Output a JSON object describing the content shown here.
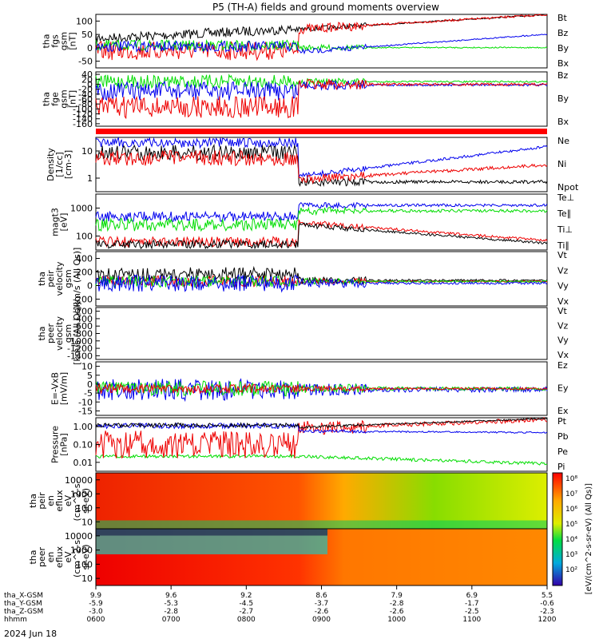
{
  "title": "P5 (TH-A) fields and ground moments overview",
  "date": "2024 Jun 18",
  "colors": {
    "black": "#000000",
    "red": "#ee0000",
    "green": "#00dd00",
    "blue": "#0000ee",
    "bar": "#ff0000"
  },
  "xaxis": {
    "rows": [
      {
        "label": "tha_X-GSM",
        "values": [
          "9.9",
          "9.6",
          "9.2",
          "8.6",
          "7.9",
          "6.9",
          "5.5"
        ]
      },
      {
        "label": "tha_Y-GSM",
        "values": [
          "-5.9",
          "-5.3",
          "-4.5",
          "-3.7",
          "-2.8",
          "-1.7",
          "-0.6"
        ]
      },
      {
        "label": "tha_Z-GSM",
        "values": [
          "-3.0",
          "-2.8",
          "-2.7",
          "-2.6",
          "-2.6",
          "-2.5",
          "-2.3"
        ]
      },
      {
        "label": "hhmm",
        "values": [
          "0600",
          "0700",
          "0800",
          "0900",
          "1000",
          "1100",
          "1200"
        ]
      }
    ]
  },
  "chart_data": [
    {
      "id": "fgs",
      "type": "line",
      "ylabel": [
        "tha",
        "fgs",
        "gsm",
        "[nT]"
      ],
      "ylim": [
        -5,
        100
      ],
      "ticks": [
        "100",
        "50",
        "0",
        "-50"
      ],
      "series": [
        {
          "name": "Bt",
          "color": "black"
        },
        {
          "name": "Bz",
          "color": "red"
        },
        {
          "name": "By",
          "color": "green"
        },
        {
          "name": "Bx",
          "color": "blue"
        }
      ]
    },
    {
      "id": "fge",
      "type": "line",
      "ylabel": [
        "tha",
        "fge",
        "gsm",
        "[nT]"
      ],
      "ylim": [
        -160,
        40
      ],
      "ticks": [
        "40",
        "20",
        "0",
        "-20",
        "-40",
        "-60",
        "-80",
        "-100",
        "-120",
        "-140",
        "-160"
      ],
      "series": [
        {
          "name": "Bz",
          "color": "red"
        },
        {
          "name": "By",
          "color": "green"
        },
        {
          "name": "Bx",
          "color": "blue"
        }
      ]
    },
    {
      "id": "density",
      "type": "line",
      "ylabel": [
        "Density",
        "[1/cc]",
        "[cm-3]"
      ],
      "scale": "log",
      "ticks": [
        "10",
        "1"
      ],
      "series": [
        {
          "name": "Ne",
          "color": "red"
        },
        {
          "name": "Ni",
          "color": "black"
        },
        {
          "name": "Npot",
          "color": "blue"
        }
      ]
    },
    {
      "id": "temp",
      "type": "line",
      "ylabel": [
        "magt3",
        "[eV]"
      ],
      "scale": "log",
      "ticks": [
        "1000",
        "100"
      ],
      "series": [
        {
          "name": "Te⊥",
          "color": "red"
        },
        {
          "name": "Te∥",
          "color": "black"
        },
        {
          "name": "Ti⊥",
          "color": "red"
        },
        {
          "name": "Ti∥",
          "color": "green"
        }
      ]
    },
    {
      "id": "peir_vel",
      "type": "line",
      "ylabel": [
        "tha",
        "peir",
        "velocity",
        "gsm",
        "[km/s (All Qs)]"
      ],
      "ylim": [
        -200,
        400
      ],
      "ticks": [
        "400",
        "200",
        "0",
        "-200"
      ],
      "series": [
        {
          "name": "Vt",
          "color": "black"
        },
        {
          "name": "Vz",
          "color": "red"
        },
        {
          "name": "Vy",
          "color": "green"
        },
        {
          "name": "Vx",
          "color": "blue"
        }
      ]
    },
    {
      "id": "peer_vel",
      "type": "line",
      "ylabel": [
        "tha",
        "peer",
        "velocity",
        "gsm",
        "[km/s (All Qs)]"
      ],
      "ylim": [
        -1400,
        0
      ],
      "ticks": [
        "-200",
        "-400",
        "-600",
        "-800",
        "-1000",
        "-1200",
        "-1400"
      ],
      "series": [
        {
          "name": "Vt",
          "color": "black"
        },
        {
          "name": "Vz",
          "color": "red"
        },
        {
          "name": "Vy",
          "color": "green"
        },
        {
          "name": "Vx",
          "color": "blue"
        }
      ]
    },
    {
      "id": "efield",
      "type": "line",
      "ylabel": [
        "E=-VxB",
        "[mV/m]"
      ],
      "ylim": [
        -15,
        10
      ],
      "ticks": [
        "10",
        "5",
        "0",
        "-5",
        "-10",
        "-15"
      ],
      "series": [
        {
          "name": "Ez",
          "color": "red"
        },
        {
          "name": "Ey",
          "color": "green"
        },
        {
          "name": "Ex",
          "color": "blue"
        }
      ]
    },
    {
      "id": "pressure",
      "type": "line",
      "ylabel": [
        "Pressure",
        "[nPa]"
      ],
      "scale": "log",
      "ticks": [
        "1.00",
        "0.10",
        "0.01"
      ],
      "series": [
        {
          "name": "Pt",
          "color": "black"
        },
        {
          "name": "Pb",
          "color": "red"
        },
        {
          "name": "Pe",
          "color": "green"
        },
        {
          "name": "Pi",
          "color": "blue"
        }
      ]
    },
    {
      "id": "peir_en",
      "type": "heatmap",
      "ylabel": [
        "tha",
        "peir",
        "en",
        "eflux",
        "eV",
        "(cm^2-s-",
        "sr-eV)"
      ],
      "scale": "log",
      "ticks": [
        "10000",
        "1000",
        "100",
        "10"
      ]
    },
    {
      "id": "peer_en",
      "type": "heatmap",
      "ylabel": [
        "tha",
        "peer",
        "en",
        "eflux",
        "eV",
        "(cm^2-s-",
        "sr-eV)"
      ],
      "scale": "log",
      "ticks": [
        "10000",
        "1000",
        "100",
        "10"
      ]
    }
  ],
  "colorbar": {
    "label": "[eV/(cm^2-s-sr-eV) (All Qs)]",
    "ticks": [
      "10⁸",
      "10⁷",
      "10⁶",
      "10⁵",
      "10⁴",
      "10³",
      "10²"
    ]
  }
}
